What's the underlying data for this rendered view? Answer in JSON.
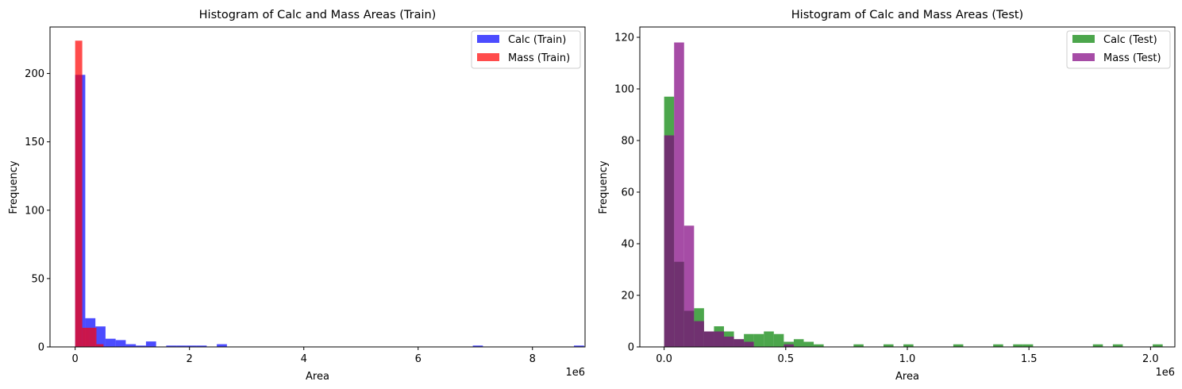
{
  "chart_data": [
    {
      "type": "bar",
      "title": "Histogram of Calc and Mass Areas (Train)",
      "xlabel": "Area",
      "ylabel": "Frequency",
      "x_offset_label": "1e6",
      "xlim": [
        -0.44,
        8.92
      ],
      "ylim": [
        0,
        234
      ],
      "xticks": [
        0,
        2,
        4,
        6,
        8
      ],
      "xtick_labels": [
        "0",
        "2",
        "4",
        "6",
        "8"
      ],
      "yticks": [
        0,
        50,
        100,
        150,
        200
      ],
      "ytick_labels": [
        "0",
        "50",
        "100",
        "150",
        "200"
      ],
      "grid": false,
      "legend": "top-right",
      "series": [
        {
          "name": "Calc (Train)",
          "color": "#0000ff",
          "alpha": 0.7,
          "bins": [
            [
              0.0,
              0.177,
              199
            ],
            [
              0.177,
              0.354,
              21
            ],
            [
              0.354,
              0.531,
              15
            ],
            [
              0.531,
              0.708,
              6
            ],
            [
              0.708,
              0.885,
              5
            ],
            [
              0.885,
              1.062,
              2
            ],
            [
              1.062,
              1.239,
              1
            ],
            [
              1.239,
              1.416,
              4
            ],
            [
              1.593,
              1.77,
              1
            ],
            [
              1.77,
              1.947,
              1
            ],
            [
              1.947,
              2.124,
              1
            ],
            [
              2.124,
              2.301,
              1
            ],
            [
              2.478,
              2.655,
              2
            ],
            [
              6.956,
              7.133,
              1
            ],
            [
              8.726,
              8.903,
              1
            ]
          ]
        },
        {
          "name": "Mass (Train)",
          "color": "#ff0000",
          "alpha": 0.7,
          "bins": [
            [
              0.0,
              0.124,
              224
            ],
            [
              0.124,
              0.248,
              14
            ],
            [
              0.248,
              0.372,
              14
            ],
            [
              0.372,
              0.496,
              2
            ]
          ]
        }
      ]
    },
    {
      "type": "bar",
      "title": "Histogram of Calc and Mass Areas (Test)",
      "xlabel": "Area",
      "ylabel": "Frequency",
      "x_offset_label": "1e6",
      "xlim": [
        -0.1,
        2.1
      ],
      "ylim": [
        0,
        124
      ],
      "xticks": [
        0,
        0.5,
        1.0,
        1.5,
        2.0
      ],
      "xtick_labels": [
        "0.0",
        "0.5",
        "1.0",
        "1.5",
        "2.0"
      ],
      "yticks": [
        0,
        20,
        40,
        60,
        80,
        100,
        120
      ],
      "ytick_labels": [
        "0",
        "20",
        "40",
        "60",
        "80",
        "100",
        "120"
      ],
      "grid": false,
      "legend": "top-right",
      "series": [
        {
          "name": "Calc (Test)",
          "color": "#008000",
          "alpha": 0.7,
          "bins": [
            [
              0.0,
              0.041,
              97
            ],
            [
              0.041,
              0.082,
              33
            ],
            [
              0.082,
              0.123,
              14
            ],
            [
              0.123,
              0.164,
              15
            ],
            [
              0.164,
              0.205,
              6
            ],
            [
              0.205,
              0.246,
              8
            ],
            [
              0.246,
              0.287,
              6
            ],
            [
              0.287,
              0.328,
              3
            ],
            [
              0.328,
              0.369,
              5
            ],
            [
              0.369,
              0.41,
              5
            ],
            [
              0.41,
              0.451,
              6
            ],
            [
              0.451,
              0.492,
              5
            ],
            [
              0.492,
              0.533,
              2
            ],
            [
              0.533,
              0.574,
              3
            ],
            [
              0.574,
              0.615,
              2
            ],
            [
              0.615,
              0.656,
              1
            ],
            [
              0.779,
              0.82,
              1
            ],
            [
              0.902,
              0.943,
              1
            ],
            [
              0.984,
              1.025,
              1
            ],
            [
              1.189,
              1.23,
              1
            ],
            [
              1.353,
              1.394,
              1
            ],
            [
              1.435,
              1.476,
              1
            ],
            [
              1.476,
              1.517,
              1
            ],
            [
              1.763,
              1.804,
              1
            ],
            [
              1.845,
              1.886,
              1
            ],
            [
              2.009,
              2.05,
              1
            ]
          ]
        },
        {
          "name": "Mass (Test)",
          "color": "#800080",
          "alpha": 0.7,
          "bins": [
            [
              0.0,
              0.041,
              82
            ],
            [
              0.041,
              0.082,
              118
            ],
            [
              0.082,
              0.123,
              47
            ],
            [
              0.123,
              0.164,
              10
            ],
            [
              0.164,
              0.205,
              6
            ],
            [
              0.205,
              0.246,
              6
            ],
            [
              0.246,
              0.287,
              4
            ],
            [
              0.287,
              0.328,
              3
            ],
            [
              0.328,
              0.369,
              2
            ],
            [
              0.492,
              0.533,
              1
            ]
          ]
        }
      ]
    }
  ]
}
